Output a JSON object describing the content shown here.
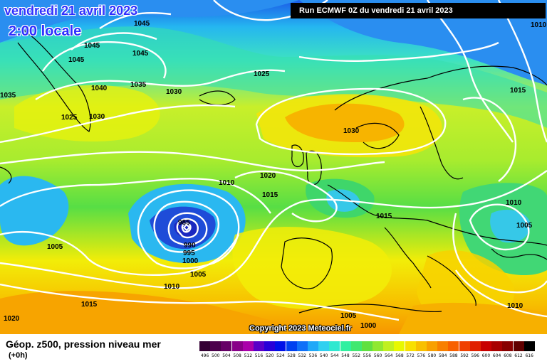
{
  "header": {
    "date": "vendredi 21 avril 2023",
    "time": "2:00 locale",
    "run": "Run ECMWF 0Z du vendredi 21 avril 2023"
  },
  "map": {
    "copyright": "Copyright 2023 Meteociel.fr",
    "isobar_labels": [
      "1045",
      "1045",
      "1045",
      "1045",
      "1040",
      "1035",
      "1035",
      "1030",
      "1030",
      "1025",
      "1025",
      "1030",
      "1010",
      "1015",
      "1020",
      "1015",
      "1010",
      "1005",
      "1015",
      "1010",
      "1005",
      "985",
      "990",
      "995",
      "1000",
      "1005",
      "1010",
      "1015",
      "1020",
      "1005",
      "1000",
      "1010"
    ],
    "low_center_value": "985",
    "colors": {
      "deep_blue": "#1e2ad8",
      "blue": "#3a78f0",
      "cyan": "#2ed6ee",
      "green": "#4fdc52",
      "yellow": "#f6f000",
      "orange": "#f7a800",
      "isobar": "#ffffff",
      "coast": "#000000"
    }
  },
  "footer": {
    "title": "Géop. z500, pression niveau mer",
    "subtitle": "(+0h)",
    "scale": [
      {
        "label": "496",
        "color": "#330033"
      },
      {
        "label": "500",
        "color": "#4b004b"
      },
      {
        "label": "504",
        "color": "#660066"
      },
      {
        "label": "508",
        "color": "#880088"
      },
      {
        "label": "512",
        "color": "#aa00aa"
      },
      {
        "label": "516",
        "color": "#5a00c8"
      },
      {
        "label": "520",
        "color": "#2800d8"
      },
      {
        "label": "524",
        "color": "#0010e8"
      },
      {
        "label": "528",
        "color": "#0040f0"
      },
      {
        "label": "532",
        "color": "#1070f8"
      },
      {
        "label": "536",
        "color": "#20a8f8"
      },
      {
        "label": "540",
        "color": "#30d0f0"
      },
      {
        "label": "544",
        "color": "#30e8d0"
      },
      {
        "label": "548",
        "color": "#30f0a0"
      },
      {
        "label": "552",
        "color": "#40e870"
      },
      {
        "label": "556",
        "color": "#60e040"
      },
      {
        "label": "560",
        "color": "#90e830"
      },
      {
        "label": "564",
        "color": "#c0f020"
      },
      {
        "label": "568",
        "color": "#e8f800"
      },
      {
        "label": "572",
        "color": "#f8e000"
      },
      {
        "label": "576",
        "color": "#f8c000"
      },
      {
        "label": "580",
        "color": "#f8a000"
      },
      {
        "label": "584",
        "color": "#f88000"
      },
      {
        "label": "588",
        "color": "#f86000"
      },
      {
        "label": "592",
        "color": "#f04000"
      },
      {
        "label": "596",
        "color": "#e02000"
      },
      {
        "label": "600",
        "color": "#c80000"
      },
      {
        "label": "604",
        "color": "#a80000"
      },
      {
        "label": "608",
        "color": "#880000"
      },
      {
        "label": "612",
        "color": "#600000"
      },
      {
        "label": "616",
        "color": "#000000"
      }
    ]
  }
}
